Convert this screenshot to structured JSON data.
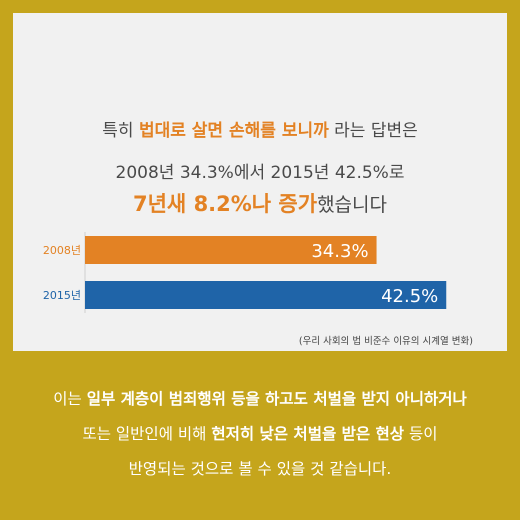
{
  "headline": {
    "line1": {
      "pre": "특히 ",
      "emph": "법대로 살면 손해를 보니까",
      "post": " 라는 답변은"
    },
    "line2": "2008년 34.3%에서 2015년 42.5%로",
    "line3": {
      "emph": "7년새 8.2%나 증가",
      "post": "했습니다"
    }
  },
  "chart_data": {
    "type": "bar",
    "orientation": "horizontal",
    "categories": [
      "2008년",
      "2015년"
    ],
    "values": [
      34.3,
      42.5
    ],
    "value_labels": [
      "34.3%",
      "42.5%"
    ],
    "colors": [
      "#e38224",
      "#1f64a8"
    ],
    "xlim": [
      0,
      50
    ]
  },
  "source": "(우리 사회의 법 비준수 이유의 시계열 변화)",
  "bottom": {
    "l1": {
      "a": "이는 ",
      "b": "일부 계층이 범죄행위 등을 하고도 처벌을 받지 아니하거나"
    },
    "l2": {
      "a": "또는 일반인에 비해 ",
      "b": "현저히 낮은 처벌을 받은 현상",
      "c": " 등이"
    },
    "l3": "반영되는 것으로 볼 수 있을 것 같습니다."
  }
}
